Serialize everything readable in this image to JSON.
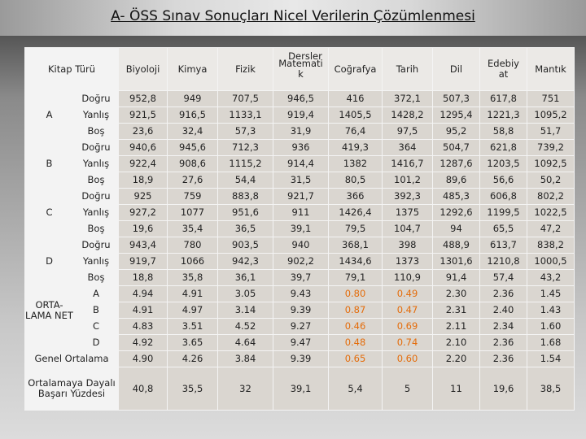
{
  "title": "A- ÖSS Sınav Sonuçları Nicel Verilerin Çözümlenmesi",
  "table": {
    "group_header": "Kitap Türü",
    "subject_header": "Dersler",
    "columns": [
      "Biyoloji",
      "Kimya",
      "Fizik",
      "Matematik",
      "Coğrafya",
      "Tarih",
      "Dil",
      "Edebiyat",
      "Mantık"
    ],
    "groups": [
      {
        "label": "A",
        "rows": [
          {
            "label": "Doğru",
            "values": [
              "952,8",
              "949",
              "707,5",
              "946,5",
              "416",
              "372,1",
              "507,3",
              "617,8",
              "751"
            ]
          },
          {
            "label": "Yanlış",
            "values": [
              "921,5",
              "916,5",
              "1133,1",
              "919,4",
              "1405,5",
              "1428,2",
              "1295,4",
              "1221,3",
              "1095,2"
            ]
          },
          {
            "label": "Boş",
            "values": [
              "23,6",
              "32,4",
              "57,3",
              "31,9",
              "76,4",
              "97,5",
              "95,2",
              "58,8",
              "51,7"
            ]
          }
        ]
      },
      {
        "label": "B",
        "rows": [
          {
            "label": "Doğru",
            "values": [
              "940,6",
              "945,6",
              "712,3",
              "936",
              "419,3",
              "364",
              "504,7",
              "621,8",
              "739,2"
            ]
          },
          {
            "label": "Yanlış",
            "values": [
              "922,4",
              "908,6",
              "1115,2",
              "914,4",
              "1382",
              "1416,7",
              "1287,6",
              "1203,5",
              "1092,5"
            ]
          },
          {
            "label": "Boş",
            "values": [
              "18,9",
              "27,6",
              "54,4",
              "31,5",
              "80,5",
              "101,2",
              "89,6",
              "56,6",
              "50,2"
            ]
          }
        ]
      },
      {
        "label": "C",
        "rows": [
          {
            "label": "Doğru",
            "values": [
              "925",
              "759",
              "883,8",
              "921,7",
              "366",
              "392,3",
              "485,3",
              "606,8",
              "802,2"
            ]
          },
          {
            "label": "Yanlış",
            "values": [
              "927,2",
              "1077",
              "951,6",
              "911",
              "1426,4",
              "1375",
              "1292,6",
              "1199,5",
              "1022,5"
            ]
          },
          {
            "label": "Boş",
            "values": [
              "19,6",
              "35,4",
              "36,5",
              "39,1",
              "79,5",
              "104,7",
              "94",
              "65,5",
              "47,2"
            ]
          }
        ]
      },
      {
        "label": "D",
        "rows": [
          {
            "label": "Doğru",
            "values": [
              "943,4",
              "780",
              "903,5",
              "940",
              "368,1",
              "398",
              "488,9",
              "613,7",
              "838,2"
            ]
          },
          {
            "label": "Yanlış",
            "values": [
              "919,7",
              "1066",
              "942,3",
              "902,2",
              "1434,6",
              "1373",
              "1301,6",
              "1210,8",
              "1000,5"
            ]
          },
          {
            "label": "Boş",
            "values": [
              "18,8",
              "35,8",
              "36,1",
              "39,7",
              "79,1",
              "110,9",
              "91,4",
              "57,4",
              "43,2"
            ]
          }
        ]
      }
    ],
    "net": {
      "label": "ORTA-LAMA NET",
      "rows": [
        {
          "label": "A",
          "values": [
            "4.94",
            "4.91",
            "3.05",
            "9.43",
            "0.80",
            "0.49",
            "2.30",
            "2.36",
            "1.45"
          ]
        },
        {
          "label": "B",
          "values": [
            "4.91",
            "4.97",
            "3.14",
            "9.39",
            "0.87",
            "0.47",
            "2.31",
            "2.40",
            "1.43"
          ]
        },
        {
          "label": "C",
          "values": [
            "4.83",
            "3.51",
            "4.52",
            "9.27",
            "0.46",
            "0.69",
            "2.11",
            "2.34",
            "1.60"
          ]
        },
        {
          "label": "D",
          "values": [
            "4.92",
            "3.65",
            "4.64",
            "9.47",
            "0.48",
            "0.74",
            "2.10",
            "2.36",
            "1.68"
          ]
        }
      ]
    },
    "general": {
      "label": "Genel Ortalama",
      "values": [
        "4.90",
        "4.26",
        "3.84",
        "9.39",
        "0.65",
        "0.60",
        "2.20",
        "2.36",
        "1.54"
      ]
    },
    "success": {
      "label": "Ortalamaya Dayalı Başarı Yüzdesi",
      "values": [
        "40,8",
        "35,5",
        "32",
        "39,1",
        "5,4",
        "5",
        "11",
        "19,6",
        "38,5"
      ]
    }
  }
}
